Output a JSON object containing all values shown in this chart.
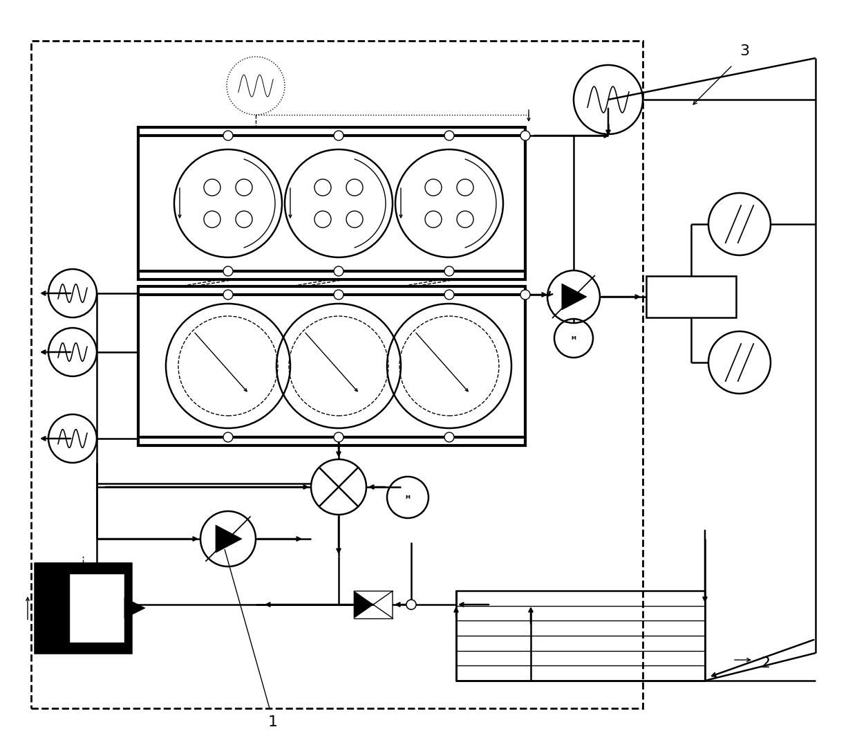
{
  "bg_color": "#ffffff",
  "line_color": "#000000",
  "label_1": "1",
  "label_2": "2",
  "label_3": "3",
  "lw_thin": 1.0,
  "lw_med": 1.8,
  "lw_thick": 3.0
}
